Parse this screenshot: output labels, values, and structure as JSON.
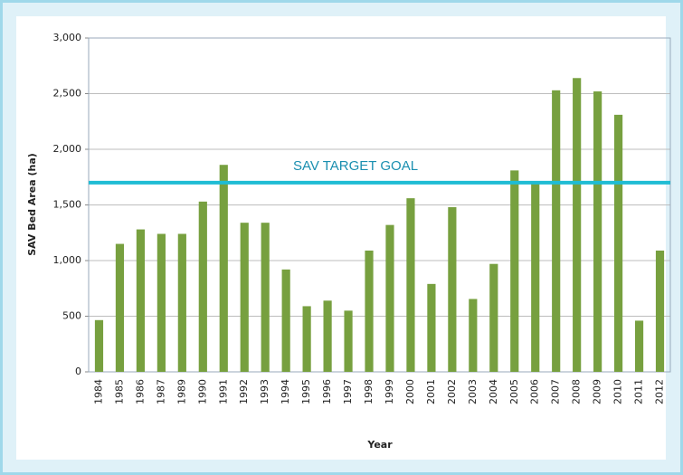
{
  "chart_data": {
    "type": "bar",
    "x_label": "Year",
    "y_label": "SAV Bed Area (ha)",
    "categories": [
      "1984",
      "1985",
      "1986",
      "1987",
      "1989",
      "1990",
      "1991",
      "1992",
      "1993",
      "1994",
      "1995",
      "1996",
      "1997",
      "1998",
      "1999",
      "2000",
      "2001",
      "2002",
      "2003",
      "2004",
      "2005",
      "2006",
      "2007",
      "2008",
      "2009",
      "2010",
      "2011",
      "2012"
    ],
    "values": [
      465,
      1150,
      1280,
      1240,
      1240,
      1530,
      1860,
      1340,
      1340,
      920,
      590,
      640,
      550,
      1090,
      1320,
      1560,
      790,
      1480,
      655,
      970,
      1810,
      1690,
      2530,
      2640,
      2520,
      2310,
      460,
      1090
    ],
    "color": "#77a03f",
    "ylim": [
      0,
      3000
    ],
    "yticks": [
      0,
      500,
      {
        "value": 1000,
        "label": "1,000"
      },
      {
        "value": 1500,
        "label": "1,500"
      },
      {
        "value": 2000,
        "label": "2,000"
      },
      {
        "value": 2500,
        "label": "2,500"
      },
      {
        "value": 3000,
        "label": "3,000"
      }
    ],
    "grid": true,
    "target": {
      "value": 1700,
      "label": "SAV TARGET GOAL",
      "color": "#1fbcd4"
    }
  }
}
